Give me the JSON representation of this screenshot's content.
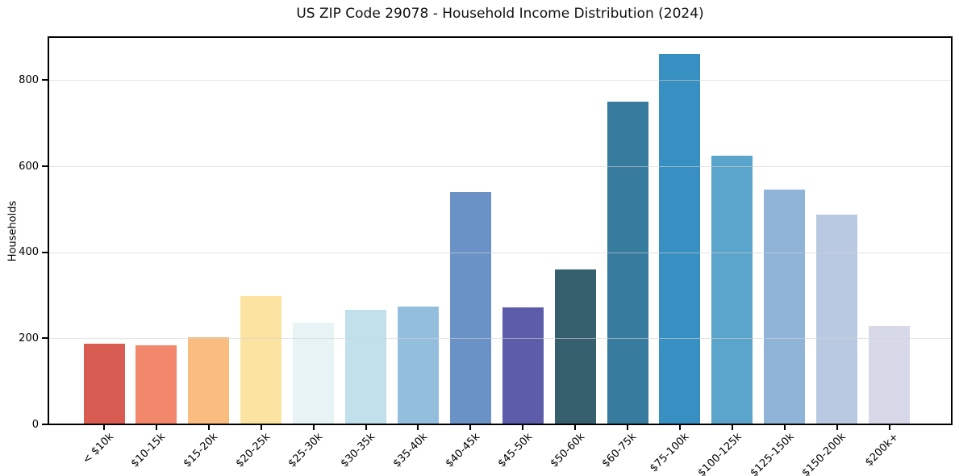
{
  "chart_data": {
    "type": "bar",
    "title": "US ZIP Code 29078 - Household Income Distribution (2024)",
    "xlabel": "",
    "ylabel": "Households",
    "categories": [
      "< $10k",
      "$10-15k",
      "$15-20k",
      "$20-25k",
      "$25-30k",
      "$30-35k",
      "$35-40k",
      "$40-45k",
      "$45-50k",
      "$50-60k",
      "$60-75k",
      "$75-100k",
      "$100-125k",
      "$125-150k",
      "$150-200k",
      "$200k+"
    ],
    "values": [
      185,
      182,
      201,
      296,
      234,
      265,
      272,
      538,
      270,
      358,
      748,
      858,
      622,
      543,
      485,
      227
    ],
    "bar_colors": [
      "#d85c51",
      "#f2876b",
      "#fbbc80",
      "#fde3a1",
      "#e7f3f4",
      "#c0e0ec",
      "#93bedd",
      "#6a92c6",
      "#5c5caa",
      "#37606f",
      "#377b9e",
      "#388fc1",
      "#5ba4cb",
      "#90b4d8",
      "#b9c9e2",
      "#d8d9e8"
    ],
    "yticks": [
      0,
      200,
      400,
      600,
      800
    ],
    "ylim": [
      0,
      902
    ],
    "grid": "horizontal",
    "legend": "none",
    "colors": {
      "spine": "#000000",
      "grid": "#d2d2d2",
      "background": "#ffffff",
      "text": "#000000"
    }
  }
}
